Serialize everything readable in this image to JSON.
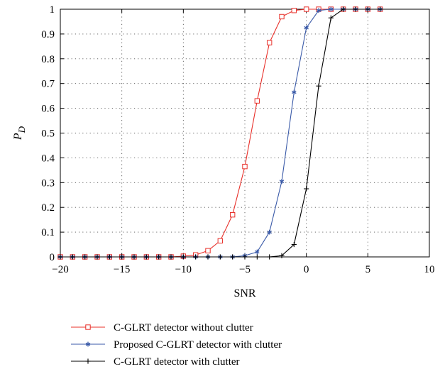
{
  "chart_data": {
    "type": "line",
    "title": "",
    "xlabel": "SNR",
    "ylabel": "P",
    "ylabel_subscript": "D",
    "xlim": [
      -20,
      10
    ],
    "ylim": [
      0,
      1
    ],
    "xticks": [
      -20,
      -15,
      -10,
      -5,
      0,
      5,
      10
    ],
    "yticks": [
      0,
      0.1,
      0.2,
      0.3,
      0.4,
      0.5,
      0.6,
      0.7,
      0.8,
      0.9,
      1
    ],
    "xtick_labels": [
      "−20",
      "−15",
      "−10",
      "−5",
      "0",
      "5",
      "10"
    ],
    "ytick_labels": [
      "0",
      "0.1",
      "0.2",
      "0.3",
      "0.4",
      "0.5",
      "0.6",
      "0.7",
      "0.8",
      "0.9",
      "1"
    ],
    "grid": true,
    "legend_position": "below",
    "x": [
      -20,
      -19,
      -18,
      -17,
      -16,
      -15,
      -14,
      -13,
      -12,
      -11,
      -10,
      -9,
      -8,
      -7,
      -6,
      -5,
      -4,
      -3,
      -2,
      -1,
      0,
      1,
      2,
      3,
      4,
      5,
      6
    ],
    "series": [
      {
        "name": "C-GLRT detector without clutter",
        "color": "#e8302a",
        "marker": "square",
        "values": [
          0,
          0,
          0,
          0,
          0,
          0,
          0,
          0,
          0,
          0,
          0.003,
          0.008,
          0.025,
          0.065,
          0.17,
          0.365,
          0.63,
          0.865,
          0.97,
          0.995,
          1,
          1,
          1,
          1,
          1,
          1,
          1
        ]
      },
      {
        "name": "Proposed C-GLRT detector with clutter",
        "color": "#3a5aa8",
        "marker": "asterisk",
        "values": [
          0,
          0,
          0,
          0,
          0,
          0,
          0,
          0,
          0,
          0,
          0,
          0,
          0,
          0,
          0,
          0.005,
          0.02,
          0.1,
          0.305,
          0.665,
          0.925,
          0.995,
          1,
          1,
          1,
          1,
          1
        ]
      },
      {
        "name": "C-GLRT detector with clutter",
        "color": "#000000",
        "marker": "plus",
        "values": [
          0,
          0,
          0,
          0,
          0,
          0,
          0,
          0,
          0,
          0,
          0,
          0,
          0,
          0,
          0,
          0,
          0,
          0,
          0.005,
          0.05,
          0.275,
          0.69,
          0.965,
          1,
          1,
          1,
          1
        ]
      }
    ]
  }
}
